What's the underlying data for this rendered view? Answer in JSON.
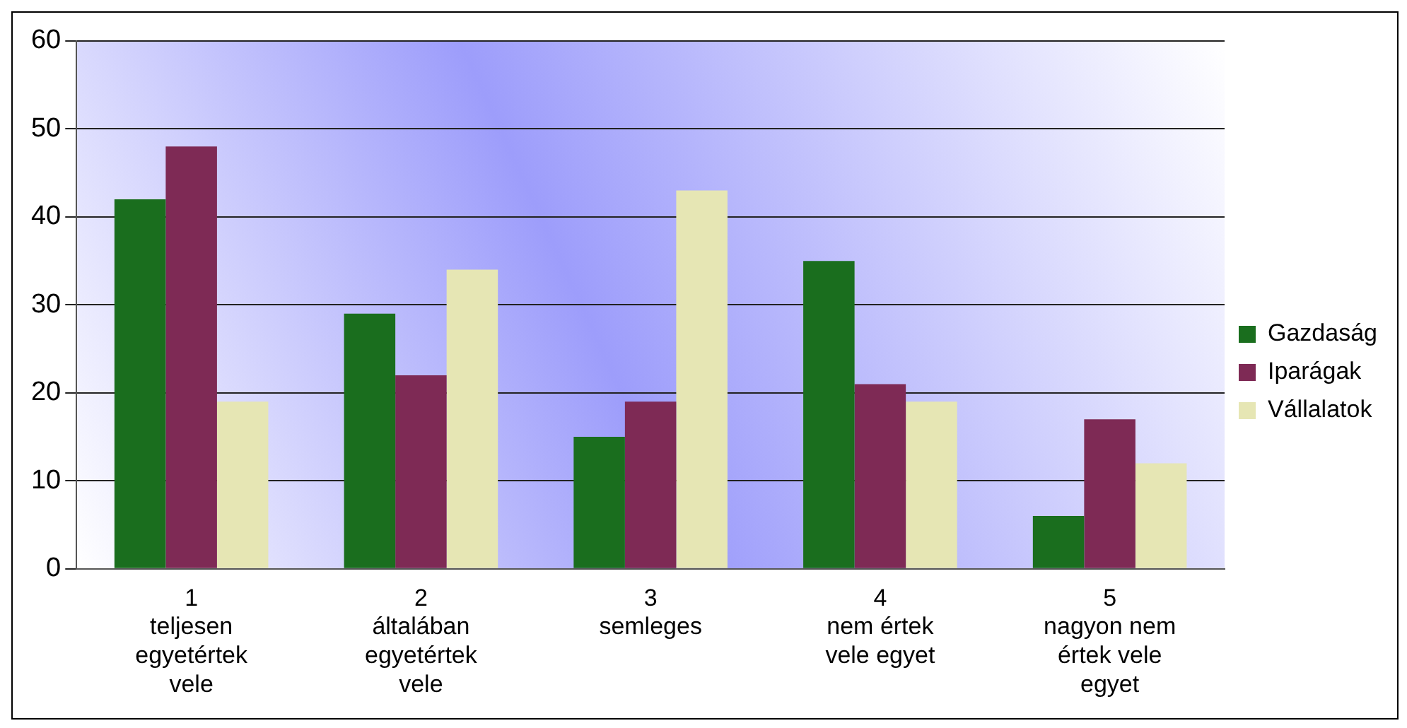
{
  "chart_data": {
    "type": "bar",
    "categories": [
      "1\nteljesen\negyetértek\nvele",
      "2\náltalában\negyetértek\nvele",
      "3\nsemleges",
      "4\nnem értek\nvele egyet",
      "5\nnagyon nem\nértek vele\negyet"
    ],
    "series": [
      {
        "name": "Gazdaság",
        "color": "#1a6e1e",
        "values": [
          42,
          29,
          15,
          35,
          6
        ]
      },
      {
        "name": "Iparágak",
        "color": "#7e2a55",
        "values": [
          48,
          22,
          19,
          21,
          17
        ]
      },
      {
        "name": "Vállalatok",
        "color": "#e6e6b4",
        "values": [
          19,
          34,
          43,
          19,
          12
        ]
      }
    ],
    "ylim": [
      0,
      60
    ],
    "yticks": [
      0,
      10,
      20,
      30,
      40,
      50,
      60
    ],
    "grid": "y",
    "legend": "right"
  }
}
